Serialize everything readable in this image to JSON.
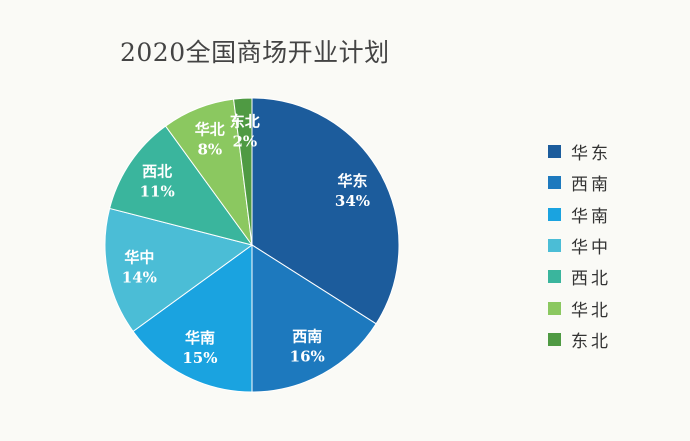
{
  "chart_data": {
    "type": "pie",
    "title": "2020全国商场开业计划",
    "categories": [
      "华东",
      "西南",
      "华南",
      "华中",
      "西北",
      "华北",
      "东北"
    ],
    "values": [
      34,
      16,
      15,
      14,
      11,
      8,
      2
    ],
    "value_labels": [
      "34%",
      "16%",
      "15%",
      "14%",
      "11%",
      "8%",
      "2%"
    ],
    "colors": [
      "#1c5c9c",
      "#1d79be",
      "#1aa3e0",
      "#4bbdd6",
      "#3ab59d",
      "#8bc860",
      "#4f9a43"
    ],
    "legend": "right",
    "start": "top",
    "direction": "clockwise"
  }
}
